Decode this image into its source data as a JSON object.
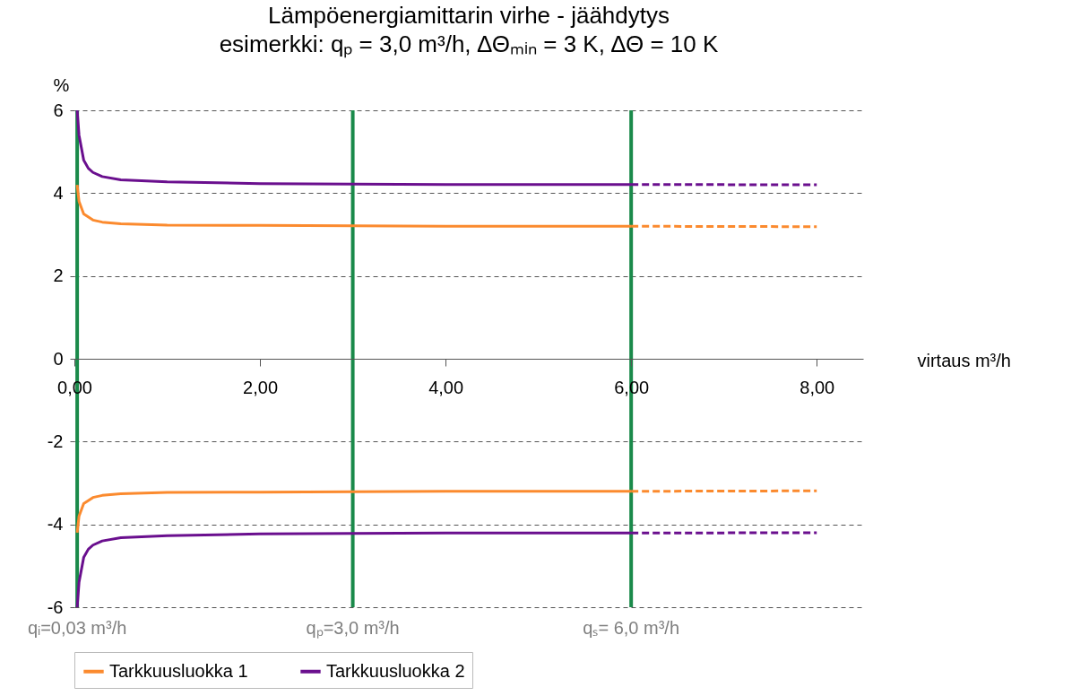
{
  "chart_data": {
    "type": "line",
    "title": "Lämpöenergiamittarin virhe - jäähdytys",
    "subtitle": "esimerkki: qₚ = 3,0 m³/h, ∆Θₘᵢₙ = 3 K, ∆Θ = 10 K",
    "xlabel": "virtaus m³/h",
    "ylabel": "%",
    "xlim": [
      0,
      8.5
    ],
    "xticks": [
      {
        "value": 0,
        "label": "0,00"
      },
      {
        "value": 2,
        "label": "2,00"
      },
      {
        "value": 4,
        "label": "4,00"
      },
      {
        "value": 6,
        "label": "6,00"
      },
      {
        "value": 8,
        "label": "8,00"
      }
    ],
    "ylim": [
      -6,
      6
    ],
    "yticks": [
      -6,
      -4,
      -2,
      0,
      2,
      4,
      6
    ],
    "grid": "y",
    "legend": "bottom",
    "ref_lines": [
      {
        "axis": "x",
        "value": 0.03,
        "label": "qᵢ=0,03 m³/h",
        "color": "#1a8a4a"
      },
      {
        "axis": "x",
        "value": 3,
        "label": "qₚ=3,0 m³/h",
        "color": "#1a8a4a"
      },
      {
        "axis": "x",
        "value": 6,
        "label": "qₛ= 6,0 m³/h",
        "color": "#1a8a4a"
      }
    ],
    "series": [
      {
        "name": "Tarkkuusluokka 1",
        "color": "#fb8a2e",
        "x": [
          0.03,
          0.05,
          0.1,
          0.2,
          0.3,
          0.5,
          1,
          2,
          3,
          4,
          5,
          6
        ],
        "values": [
          4.2,
          3.8,
          3.5,
          3.35,
          3.3,
          3.26,
          3.23,
          3.22,
          3.21,
          3.2,
          3.2,
          3.2
        ]
      },
      {
        "color": "#fb8a2e",
        "x": [
          0.03,
          0.05,
          0.1,
          0.2,
          0.3,
          0.5,
          1,
          2,
          3,
          4,
          5,
          6
        ],
        "values": [
          -4.2,
          -3.8,
          -3.5,
          -3.35,
          -3.3,
          -3.26,
          -3.23,
          -3.22,
          -3.21,
          -3.2,
          -3.2,
          -3.2
        ]
      },
      {
        "color": "#fb8a2e",
        "line_style": "dashed",
        "x": [
          6,
          8
        ],
        "values": [
          3.2,
          3.19
        ]
      },
      {
        "color": "#fb8a2e",
        "line_style": "dashed",
        "x": [
          6,
          8
        ],
        "values": [
          -3.2,
          -3.19
        ]
      },
      {
        "name": "Tarkkuusluokka 2",
        "color": "#6a0f8e",
        "x": [
          0.03,
          0.05,
          0.1,
          0.15,
          0.2,
          0.3,
          0.5,
          1,
          2,
          3,
          4,
          5,
          6
        ],
        "values": [
          6.0,
          5.4,
          4.8,
          4.6,
          4.5,
          4.4,
          4.32,
          4.27,
          4.23,
          4.22,
          4.21,
          4.21,
          4.21
        ]
      },
      {
        "color": "#6a0f8e",
        "x": [
          0.03,
          0.05,
          0.1,
          0.15,
          0.2,
          0.3,
          0.5,
          1,
          2,
          3,
          4,
          5,
          6
        ],
        "values": [
          -6.0,
          -5.4,
          -4.8,
          -4.6,
          -4.5,
          -4.4,
          -4.32,
          -4.27,
          -4.23,
          -4.22,
          -4.21,
          -4.21,
          -4.21
        ]
      },
      {
        "color": "#6a0f8e",
        "line_style": "dashed",
        "x": [
          6,
          8
        ],
        "values": [
          4.21,
          4.2
        ]
      },
      {
        "color": "#6a0f8e",
        "line_style": "dashed",
        "x": [
          6,
          8
        ],
        "values": [
          -4.21,
          -4.2
        ]
      }
    ]
  }
}
